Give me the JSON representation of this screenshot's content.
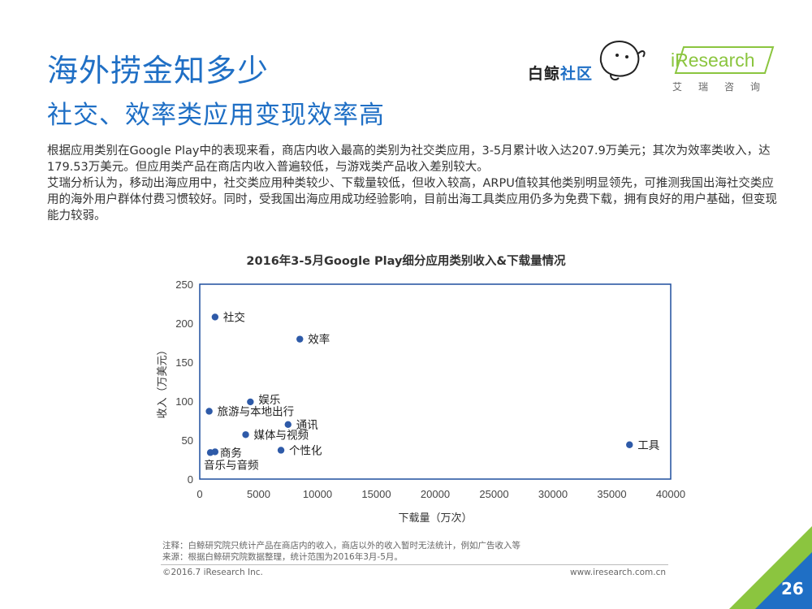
{
  "header": {
    "title": "海外捞金知多少",
    "subtitle": "社交、效率类应用变现效率高"
  },
  "logos": {
    "whale_text_a": "白鲸",
    "whale_text_b": "社区",
    "ir_word": "iResearch",
    "ir_sub": "艾瑞咨询"
  },
  "body": {
    "paragraph1": "根据应用类别在Google Play中的表现来看，商店内收入最高的类别为社交类应用，3-5月累计收入达207.9万美元；其次为效率类收入，达179.53万美元。但应用类产品在商店内收入普遍较低，与游戏类产品收入差别较大。",
    "paragraph2": "艾瑞分析认为，移动出海应用中，社交类应用种类较少、下载量较低，但收入较高，ARPU值较其他类别明显领先，可推测我国出海社交类应用的海外用户群体付费习惯较好。同时，受我国出海应用成功经验影响，目前出海工具类应用仍多为免费下载，拥有良好的用户基础，但变现能力较弱。"
  },
  "chart_data": {
    "type": "scatter",
    "title": "2016年3-5月Google Play细分应用类别收入&下载量情况",
    "xlabel": "下载量（万次）",
    "ylabel": "收入（万美元）",
    "xlim": [
      0,
      40000
    ],
    "ylim": [
      0,
      250
    ],
    "xticks": [
      0,
      5000,
      10000,
      15000,
      20000,
      25000,
      30000,
      35000,
      40000
    ],
    "yticks": [
      0,
      50,
      100,
      150,
      200,
      250
    ],
    "grid": false,
    "point_color": "#2e5aa8",
    "points": [
      {
        "label": "社交",
        "x": 1300,
        "y": 207.9
      },
      {
        "label": "效率",
        "x": 8500,
        "y": 179.53
      },
      {
        "label": "娱乐",
        "x": 4300,
        "y": 99
      },
      {
        "label": "旅游与本地出行",
        "x": 800,
        "y": 87
      },
      {
        "label": "通讯",
        "x": 7500,
        "y": 70
      },
      {
        "label": "媒体与视频",
        "x": 3900,
        "y": 57
      },
      {
        "label": "个性化",
        "x": 6900,
        "y": 37
      },
      {
        "label": "商务",
        "x": 1300,
        "y": 35
      },
      {
        "label": "音乐与音频",
        "x": 900,
        "y": 34
      },
      {
        "label": "工具",
        "x": 36500,
        "y": 44
      }
    ]
  },
  "notes": {
    "note": "注释：白鲸研究院只统计产品在商店内的收入，商店以外的收入暂时无法统计，例如广告收入等",
    "source": "来源：根据白鲸研究院数据整理，统计范围为2016年3月-5月。"
  },
  "footer": {
    "copyright": "©2016.7 iResearch Inc.",
    "site": "www.iresearch.com.cn",
    "page": "26"
  }
}
